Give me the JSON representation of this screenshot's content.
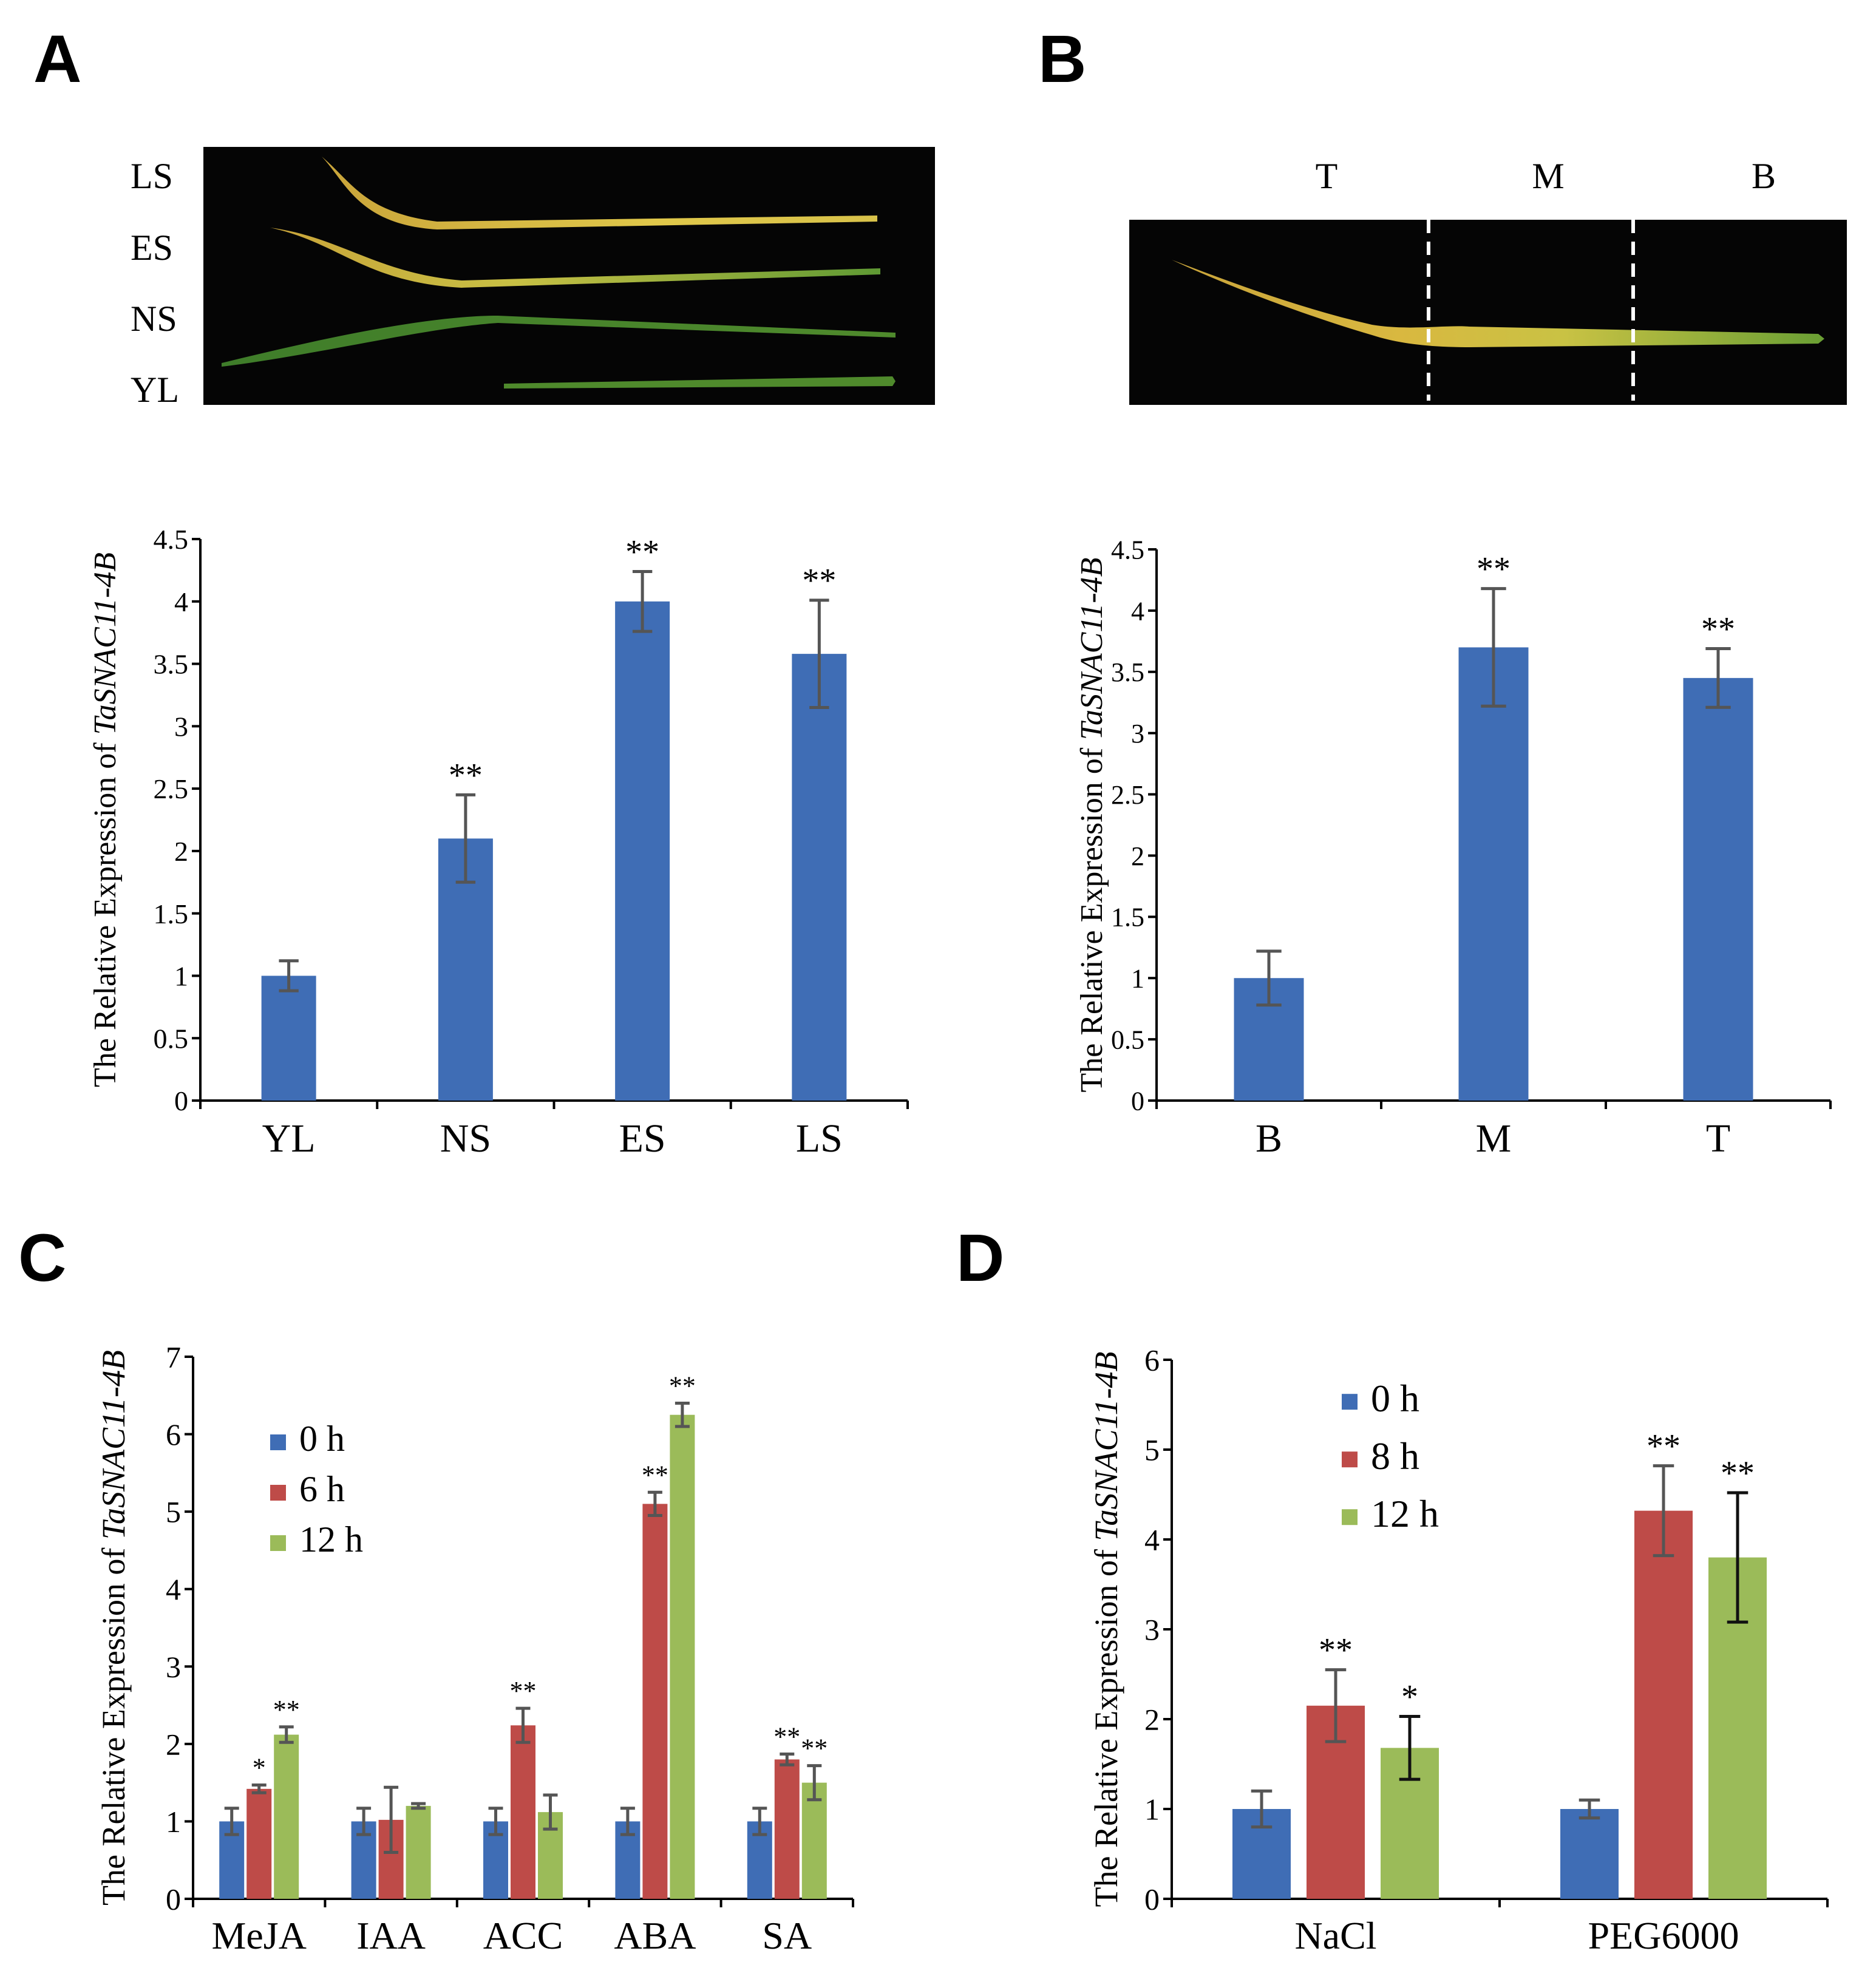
{
  "panels": {
    "A": {
      "letter": "A",
      "photo_labels": [
        "LS",
        "ES",
        "NS",
        "YL"
      ]
    },
    "B": {
      "letter": "B",
      "photo_labels": [
        "T",
        "M",
        "B"
      ]
    },
    "C": {
      "letter": "C"
    },
    "D": {
      "letter": "D"
    }
  },
  "colors": {
    "blue": "#3f6db5",
    "red": "#be4b48",
    "green": "#9bbb59",
    "error": "#555555",
    "photo_bg": "#050505",
    "leaf_yellow": "#d9b83a",
    "leaf_green": "#4f8a2c"
  },
  "chart_data": [
    {
      "id": "A",
      "type": "bar",
      "ylabel_prefix": "The Relative Expression of ",
      "ylabel_gene": "TaSNAC11-4B",
      "ylim": [
        0,
        4.5
      ],
      "yticks": [
        "0",
        "0.5",
        "1",
        "1.5",
        "2",
        "2.5",
        "3",
        "3.5",
        "4",
        "4.5"
      ],
      "categories": [
        "YL",
        "NS",
        "ES",
        "LS"
      ],
      "series": [
        {
          "name": "",
          "color": "blue",
          "values": [
            1.0,
            2.1,
            4.0,
            3.58
          ],
          "errors": [
            0.12,
            0.35,
            0.24,
            0.43
          ],
          "sig": [
            "",
            "**",
            "**",
            "**"
          ]
        }
      ]
    },
    {
      "id": "B",
      "type": "bar",
      "ylabel_prefix": "The Relative Expression of ",
      "ylabel_gene": "TaSNAC11-4B",
      "ylim": [
        0,
        4.5
      ],
      "yticks": [
        "0",
        "0.5",
        "1",
        "1.5",
        "2",
        "2.5",
        "3",
        "3.5",
        "4",
        "4.5"
      ],
      "categories": [
        "B",
        "M",
        "T"
      ],
      "series": [
        {
          "name": "",
          "color": "blue",
          "values": [
            1.0,
            3.7,
            3.45
          ],
          "errors": [
            0.22,
            0.48,
            0.24
          ],
          "sig": [
            "",
            "**",
            "**"
          ]
        }
      ]
    },
    {
      "id": "C",
      "type": "bar",
      "ylabel_prefix": "The Relative Expression of ",
      "ylabel_gene": "TaSNAC11-4B",
      "ylim": [
        0,
        7
      ],
      "yticks": [
        "0",
        "1",
        "2",
        "3",
        "4",
        "5",
        "6",
        "7"
      ],
      "categories": [
        "MeJA",
        "IAA",
        "ACC",
        "ABA",
        "SA"
      ],
      "legend_position": "top-left",
      "series": [
        {
          "name": "0 h",
          "color": "blue",
          "values": [
            1.0,
            1.0,
            1.0,
            1.0,
            1.0
          ],
          "errors": [
            0.17,
            0.17,
            0.17,
            0.17,
            0.17
          ],
          "sig": [
            "",
            "",
            "",
            "",
            ""
          ]
        },
        {
          "name": "6 h",
          "color": "red",
          "values": [
            1.42,
            1.02,
            2.24,
            5.1,
            1.8
          ],
          "errors": [
            0.05,
            0.42,
            0.22,
            0.15,
            0.07
          ],
          "sig": [
            "*",
            "",
            "**",
            "**",
            "**"
          ]
        },
        {
          "name": "12 h",
          "color": "green",
          "values": [
            2.12,
            1.2,
            1.12,
            6.25,
            1.5
          ],
          "errors": [
            0.1,
            0.03,
            0.22,
            0.15,
            0.22
          ],
          "sig": [
            "**",
            "",
            "",
            "**",
            "**"
          ]
        }
      ]
    },
    {
      "id": "D",
      "type": "bar",
      "ylabel_prefix": "The Relative Expression of ",
      "ylabel_gene": "TaSNAC11-4B",
      "ylim": [
        0,
        6
      ],
      "yticks": [
        "0",
        "1",
        "2",
        "3",
        "4",
        "5",
        "6"
      ],
      "categories": [
        "NaCl",
        "PEG6000"
      ],
      "legend_position": "top-left",
      "series": [
        {
          "name": "0 h",
          "color": "blue",
          "values": [
            1.0,
            1.0
          ],
          "errors": [
            0.2,
            0.1
          ],
          "sig": [
            "",
            ""
          ]
        },
        {
          "name": "8 h",
          "color": "red",
          "values": [
            2.15,
            4.32
          ],
          "errors": [
            0.4,
            0.5
          ],
          "sig": [
            "**",
            "**"
          ]
        },
        {
          "name": "12 h",
          "color": "green",
          "values": [
            1.68,
            3.8
          ],
          "errors": [
            0.35,
            0.72
          ],
          "sig": [
            "*",
            "**"
          ]
        }
      ]
    }
  ]
}
